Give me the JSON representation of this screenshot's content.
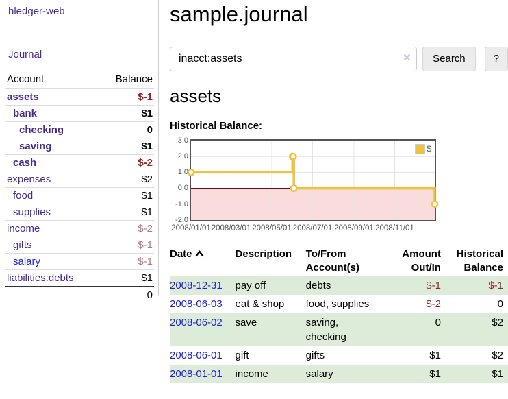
{
  "app": {
    "brand": "hledger-web",
    "nav_journal": "Journal"
  },
  "sidebar": {
    "header": {
      "account": "Account",
      "balance": "Balance"
    },
    "accounts": [
      {
        "label": "assets",
        "balance": "$-1",
        "depth": 1,
        "bold": true,
        "link": "purple",
        "bal_style": "neg-strong"
      },
      {
        "label": "bank",
        "balance": "$1",
        "depth": 2,
        "bold": true,
        "link": "purple",
        "bal_style": "bold"
      },
      {
        "label": "checking",
        "balance": "0",
        "depth": 3,
        "bold": true,
        "link": "purple",
        "bal_style": "bold"
      },
      {
        "label": "saving",
        "balance": "$1",
        "depth": 3,
        "bold": true,
        "link": "purple",
        "bal_style": "bold"
      },
      {
        "label": "cash",
        "balance": "$-2",
        "depth": 2,
        "bold": true,
        "link": "purple",
        "bal_style": "neg-strong"
      },
      {
        "label": "expenses",
        "balance": "$2",
        "depth": 1,
        "bold": false,
        "link": "purple",
        "bal_style": "plain"
      },
      {
        "label": "food",
        "balance": "$1",
        "depth": 2,
        "bold": false,
        "link": "purple",
        "bal_style": "plain"
      },
      {
        "label": "supplies",
        "balance": "$1",
        "depth": 2,
        "bold": false,
        "link": "purple",
        "bal_style": "plain"
      },
      {
        "label": "income",
        "balance": "$-2",
        "depth": 1,
        "bold": false,
        "link": "purple",
        "bal_style": "rose"
      },
      {
        "label": "gifts",
        "balance": "$-1",
        "depth": 2,
        "bold": false,
        "link": "purple",
        "bal_style": "rose"
      },
      {
        "label": "salary",
        "balance": "$-1",
        "depth": 2,
        "bold": false,
        "link": "blue",
        "bal_style": "rose"
      },
      {
        "label": "liabilities:debts",
        "balance": "$1",
        "depth": 1,
        "bold": false,
        "link": "purple",
        "bal_style": "plain"
      }
    ],
    "total": "0"
  },
  "main": {
    "title": "sample.journal",
    "search": {
      "value": "inacct:assets",
      "clear_icon": "×",
      "button_label": "Search",
      "help_label": "?"
    },
    "account_heading": "assets",
    "chart_label": "Historical Balance:"
  },
  "chart_data": {
    "type": "line",
    "title": "Historical Balance:",
    "step": true,
    "x_range": [
      "2008-01-01",
      "2008-12-31"
    ],
    "ylim": [
      -2,
      3
    ],
    "y_ticks": [
      "3.0",
      "2.0",
      "1.0",
      "0.0",
      "-1.0",
      "-2.0"
    ],
    "x_ticks": [
      "2008/01/01",
      "2008/03/01",
      "2008/05/01",
      "2008/07/01",
      "2008/09/01",
      "2008/11/01"
    ],
    "grid_y_values": [
      2,
      1,
      -1
    ],
    "series": [
      {
        "name": "$",
        "points": [
          {
            "date": "2008-01-01",
            "value": 1
          },
          {
            "date": "2008-06-01",
            "value": 2
          },
          {
            "date": "2008-06-02",
            "value": 2
          },
          {
            "date": "2008-06-03",
            "value": 0
          },
          {
            "date": "2008-12-31",
            "value": -1
          }
        ]
      }
    ],
    "legend": {
      "position": "top-right",
      "label": "$"
    }
  },
  "register": {
    "columns": {
      "date": "Date",
      "description": "Description",
      "accounts": "To/From Account(s)",
      "amount": "Amount Out/In",
      "balance": "Historical Balance"
    },
    "rows": [
      {
        "date": "2008-12-31",
        "description": "pay off",
        "accounts": "debts",
        "amount": "$-1",
        "balance": "$-1",
        "amount_negative": true,
        "balance_negative": true,
        "shaded": true
      },
      {
        "date": "2008-06-03",
        "description": "eat & shop",
        "accounts": "food, supplies",
        "amount": "$-2",
        "balance": "0",
        "amount_negative": true,
        "balance_negative": false,
        "shaded": false
      },
      {
        "date": "2008-06-02",
        "description": "save",
        "accounts": "saving, checking",
        "amount": "0",
        "balance": "$2",
        "amount_negative": false,
        "balance_negative": false,
        "shaded": true
      },
      {
        "date": "2008-06-01",
        "description": "gift",
        "accounts": "gifts",
        "amount": "$1",
        "balance": "$2",
        "amount_negative": false,
        "balance_negative": false,
        "shaded": false
      },
      {
        "date": "2008-01-01",
        "description": "income",
        "accounts": "salary",
        "amount": "$1",
        "balance": "$1",
        "amount_negative": false,
        "balance_negative": false,
        "shaded": true
      }
    ]
  },
  "colors": {
    "purple-link": "#472a94",
    "blue-link": "#2222cc",
    "negative-strong": "#a01d1d",
    "negative": "#8b2a2a",
    "rose": "#bb7878",
    "row-green": "#dcecd9",
    "chart-gold": "#edc240",
    "chart-grid": "#e4e4e4",
    "chart-frame": "#545454",
    "chart-negative-fill": "#fbdcdc",
    "chart-zero-line": "#8b0000",
    "button-bg": "#ececec",
    "input-border": "#cccccc",
    "separator": "#cccccc"
  }
}
